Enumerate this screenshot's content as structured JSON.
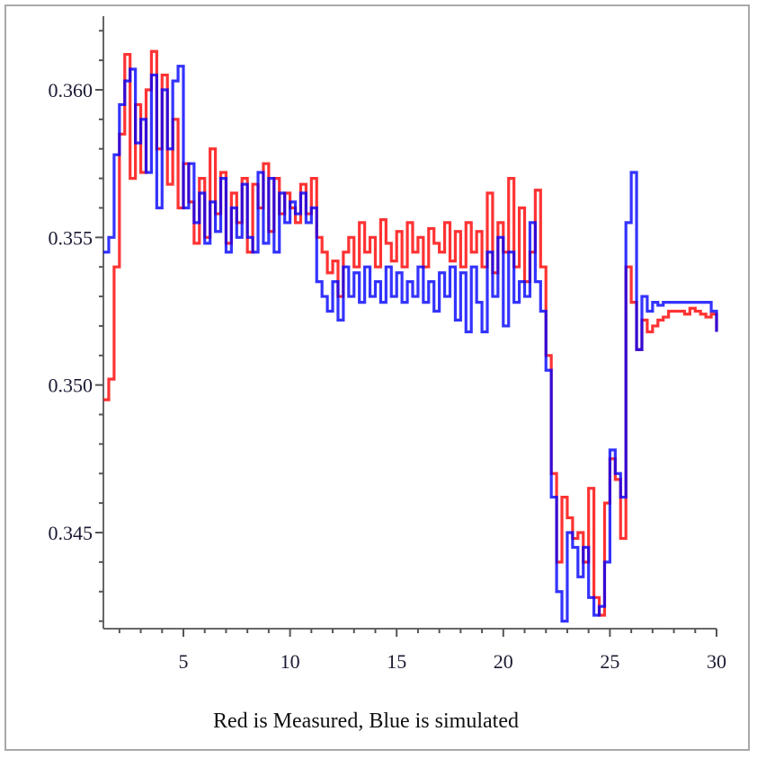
{
  "chart_data": {
    "type": "line",
    "title": "",
    "xlabel": "Red is Measured, Blue is simulated",
    "ylabel": "",
    "xlim": [
      1.25,
      30
    ],
    "ylim": [
      0.34175,
      0.3627
    ],
    "x_ticks": [
      5,
      10,
      15,
      20,
      25,
      30
    ],
    "x_tick_labels": [
      "5",
      "10",
      "15",
      "20",
      "25",
      "30"
    ],
    "y_ticks": [
      0.345,
      0.35,
      0.355,
      0.36
    ],
    "y_tick_labels": [
      "0.345",
      "0.350",
      "0.355",
      "0.360"
    ],
    "grid": false,
    "x_start": 1.25,
    "x_step": 0.25,
    "series": [
      {
        "name": "Measured",
        "color": "#ff0000",
        "values": [
          0.3495,
          0.3502,
          0.354,
          0.3585,
          0.3612,
          0.357,
          0.3595,
          0.3572,
          0.36,
          0.3613,
          0.358,
          0.3605,
          0.3568,
          0.359,
          0.356,
          0.3575,
          0.3562,
          0.3548,
          0.357,
          0.355,
          0.358,
          0.3558,
          0.3572,
          0.3548,
          0.3565,
          0.3555,
          0.357,
          0.3545,
          0.3568,
          0.356,
          0.3575,
          0.3552,
          0.357,
          0.3558,
          0.3565,
          0.356,
          0.3555,
          0.3568,
          0.3558,
          0.357,
          0.355,
          0.3545,
          0.3538,
          0.3542,
          0.353,
          0.3545,
          0.355,
          0.354,
          0.3555,
          0.3545,
          0.355,
          0.354,
          0.3556,
          0.3548,
          0.3542,
          0.3552,
          0.354,
          0.3555,
          0.3545,
          0.355,
          0.354,
          0.3553,
          0.3548,
          0.3545,
          0.3555,
          0.3542,
          0.3552,
          0.354,
          0.3555,
          0.3545,
          0.3552,
          0.354,
          0.3565,
          0.3538,
          0.3555,
          0.3545,
          0.357,
          0.354,
          0.356,
          0.3535,
          0.3545,
          0.3566,
          0.354,
          0.351,
          0.347,
          0.344,
          0.3462,
          0.3455,
          0.3448,
          0.345,
          0.344,
          0.3465,
          0.3428,
          0.3422,
          0.346,
          0.3475,
          0.3468,
          0.3448,
          0.354,
          0.3528,
          0.3512,
          0.3522,
          0.3518,
          0.352,
          0.3522,
          0.3523,
          0.3525,
          0.3525,
          0.3525,
          0.3524,
          0.3526,
          0.3525,
          0.3524,
          0.3523,
          0.3524,
          0.3518
        ]
      },
      {
        "name": "Simulated",
        "color": "#0000ff",
        "values": [
          0.3545,
          0.355,
          0.3578,
          0.3595,
          0.3603,
          0.3607,
          0.3582,
          0.359,
          0.3572,
          0.3605,
          0.356,
          0.36,
          0.358,
          0.3603,
          0.3608,
          0.356,
          0.3575,
          0.3555,
          0.3565,
          0.3548,
          0.3562,
          0.3552,
          0.357,
          0.3545,
          0.356,
          0.355,
          0.3568,
          0.355,
          0.3545,
          0.3572,
          0.3548,
          0.357,
          0.3545,
          0.3565,
          0.3555,
          0.3562,
          0.3558,
          0.3565,
          0.3555,
          0.356,
          0.3535,
          0.353,
          0.3525,
          0.3535,
          0.3522,
          0.354,
          0.353,
          0.3538,
          0.3528,
          0.354,
          0.353,
          0.3535,
          0.3528,
          0.354,
          0.353,
          0.3538,
          0.3528,
          0.3535,
          0.353,
          0.354,
          0.3528,
          0.3535,
          0.3525,
          0.3538,
          0.353,
          0.354,
          0.3522,
          0.3538,
          0.3518,
          0.354,
          0.3528,
          0.3518,
          0.3545,
          0.353,
          0.355,
          0.352,
          0.3545,
          0.3528,
          0.3535,
          0.353,
          0.3555,
          0.3535,
          0.3525,
          0.3505,
          0.3462,
          0.343,
          0.342,
          0.345,
          0.3445,
          0.3435,
          0.3445,
          0.3428,
          0.3422,
          0.3425,
          0.344,
          0.3478,
          0.347,
          0.3462,
          0.3555,
          0.3572,
          0.3512,
          0.353,
          0.3525,
          0.3528,
          0.3527,
          0.3528,
          0.3528,
          0.3528,
          0.3528,
          0.3528,
          0.3528,
          0.3528,
          0.3528,
          0.3528,
          0.3525,
          0.3518
        ]
      }
    ]
  }
}
